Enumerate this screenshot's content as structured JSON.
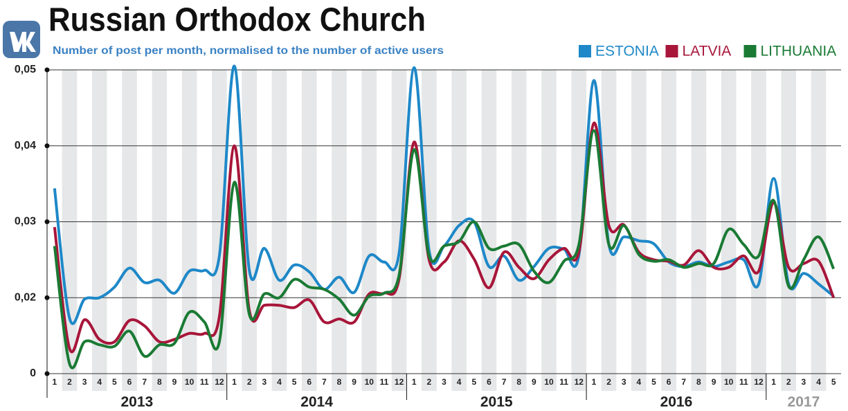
{
  "chart_data": {
    "type": "line",
    "title": "Russian Orthodox Church",
    "subtitle": "Number of post per month, normalised to the number of active users",
    "categories": [
      "1",
      "2",
      "3",
      "4",
      "5",
      "6",
      "7",
      "8",
      "9",
      "10",
      "11",
      "12",
      "1",
      "2",
      "3",
      "4",
      "5",
      "6",
      "7",
      "8",
      "9",
      "10",
      "11",
      "12",
      "1",
      "2",
      "3",
      "4",
      "5",
      "6",
      "7",
      "8",
      "9",
      "10",
      "11",
      "12",
      "1",
      "2",
      "3",
      "4",
      "5",
      "6",
      "7",
      "8",
      "9",
      "10",
      "11",
      "12",
      "1",
      "2",
      "3",
      "4",
      "5"
    ],
    "groups": [
      "2013",
      "2014",
      "2015",
      "2016",
      "2017"
    ],
    "ylim": [
      0.01,
      0.05
    ],
    "yticks": [
      {
        "value": 0.01,
        "label": "0"
      },
      {
        "value": 0.02,
        "label": "0,02"
      },
      {
        "value": 0.03,
        "label": "0,03"
      },
      {
        "value": 0.04,
        "label": "0,04"
      },
      {
        "value": 0.05,
        "label": "0,05"
      }
    ],
    "grid": true,
    "legend": "top-right",
    "series": [
      {
        "name": "ESTONIA",
        "color": "#1e88c8",
        "values": [
          0.0344,
          0.0173,
          0.0198,
          0.02,
          0.0214,
          0.0239,
          0.022,
          0.0223,
          0.0206,
          0.0235,
          0.0236,
          0.0255,
          0.0505,
          0.0236,
          0.0265,
          0.0223,
          0.0243,
          0.0234,
          0.0211,
          0.0227,
          0.0207,
          0.0255,
          0.0247,
          0.0259,
          0.0503,
          0.0262,
          0.0268,
          0.0295,
          0.03,
          0.0241,
          0.0255,
          0.0223,
          0.0241,
          0.0265,
          0.0264,
          0.0256,
          0.0486,
          0.027,
          0.028,
          0.0275,
          0.0271,
          0.0247,
          0.0241,
          0.0247,
          0.0241,
          0.0247,
          0.025,
          0.0218,
          0.0357,
          0.0218,
          0.0232,
          0.0218,
          0.0202
        ]
      },
      {
        "name": "LATVIA",
        "color": "#a8163a",
        "values": [
          0.0293,
          0.0133,
          0.0171,
          0.0145,
          0.0142,
          0.017,
          0.0163,
          0.0142,
          0.0145,
          0.0153,
          0.0153,
          0.0175,
          0.04,
          0.0183,
          0.019,
          0.019,
          0.0187,
          0.0197,
          0.0168,
          0.0172,
          0.0168,
          0.0205,
          0.0206,
          0.0225,
          0.0405,
          0.025,
          0.0247,
          0.0275,
          0.0251,
          0.0213,
          0.026,
          0.024,
          0.0225,
          0.025,
          0.0265,
          0.026,
          0.043,
          0.0295,
          0.0296,
          0.026,
          0.025,
          0.0248,
          0.0243,
          0.0262,
          0.024,
          0.024,
          0.0255,
          0.0235,
          0.0325,
          0.024,
          0.0245,
          0.0248,
          0.02
        ]
      },
      {
        "name": "LITHUANIA",
        "color": "#1a7a34",
        "values": [
          0.0268,
          0.0113,
          0.0142,
          0.0138,
          0.0136,
          0.0156,
          0.0123,
          0.0138,
          0.014,
          0.0181,
          0.0168,
          0.0142,
          0.0352,
          0.0178,
          0.0205,
          0.02,
          0.0224,
          0.0214,
          0.0211,
          0.0198,
          0.0177,
          0.0202,
          0.0206,
          0.023,
          0.0395,
          0.0255,
          0.0268,
          0.0274,
          0.03,
          0.0265,
          0.0268,
          0.027,
          0.0235,
          0.022,
          0.0248,
          0.027,
          0.042,
          0.027,
          0.0295,
          0.0257,
          0.0248,
          0.025,
          0.024,
          0.0245,
          0.0245,
          0.029,
          0.027,
          0.0255,
          0.0328,
          0.0215,
          0.025,
          0.028,
          0.0238
        ]
      }
    ]
  }
}
